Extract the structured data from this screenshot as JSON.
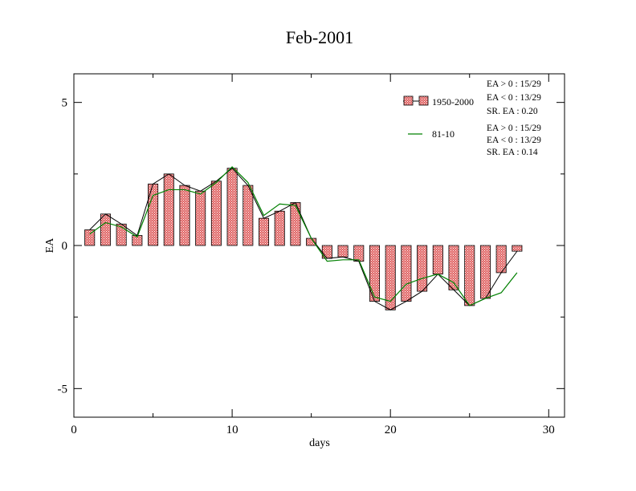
{
  "chart_data": {
    "type": "bar",
    "title": "Feb-2001",
    "xlabel": "days",
    "ylabel": "EA",
    "xlim": [
      0,
      31
    ],
    "ylim": [
      -6,
      6
    ],
    "x_ticks": [
      0,
      10,
      20,
      30
    ],
    "x_tick_labels": [
      "0",
      "10",
      "20",
      "30"
    ],
    "y_ticks": [
      -5,
      0,
      5
    ],
    "y_tick_labels": [
      "-5",
      "0",
      "5"
    ],
    "grid": false,
    "legend_position": "top-right",
    "series": [
      {
        "name": "1950-2000",
        "type": "bar",
        "color": "#e06666",
        "x": [
          1,
          2,
          3,
          4,
          5,
          6,
          7,
          8,
          9,
          10,
          11,
          12,
          13,
          14,
          15,
          16,
          17,
          18,
          19,
          20,
          21,
          22,
          23,
          24,
          25,
          26,
          27,
          28
        ],
        "values": [
          0.55,
          1.1,
          0.75,
          0.35,
          2.15,
          2.5,
          2.1,
          1.9,
          2.25,
          2.7,
          2.1,
          0.95,
          1.2,
          1.5,
          0.25,
          -0.45,
          -0.4,
          -0.55,
          -1.95,
          -2.25,
          -1.95,
          -1.6,
          -1.0,
          -1.55,
          -2.1,
          -1.85,
          -0.95,
          -0.2
        ]
      },
      {
        "name": "81-10",
        "type": "line",
        "color": "#008000",
        "x": [
          1,
          2,
          3,
          4,
          5,
          6,
          7,
          8,
          9,
          10,
          11,
          12,
          13,
          14,
          15,
          16,
          17,
          18,
          19,
          20,
          21,
          22,
          23,
          24,
          25,
          26,
          27,
          28
        ],
        "values": [
          0.4,
          0.8,
          0.65,
          0.3,
          1.75,
          1.95,
          1.95,
          1.8,
          2.2,
          2.75,
          2.2,
          1.05,
          1.45,
          1.4,
          0.25,
          -0.55,
          -0.5,
          -0.5,
          -1.8,
          -1.95,
          -1.35,
          -1.15,
          -1.0,
          -1.3,
          -2.1,
          -1.85,
          -1.65,
          -0.95
        ]
      }
    ],
    "stats": [
      [
        "EA > 0 : 15/29",
        "EA < 0 : 13/29",
        "SR. EA :  0.20"
      ],
      [
        "EA > 0 : 15/29",
        "EA < 0 : 13/29",
        "SR. EA :  0.14"
      ]
    ]
  }
}
